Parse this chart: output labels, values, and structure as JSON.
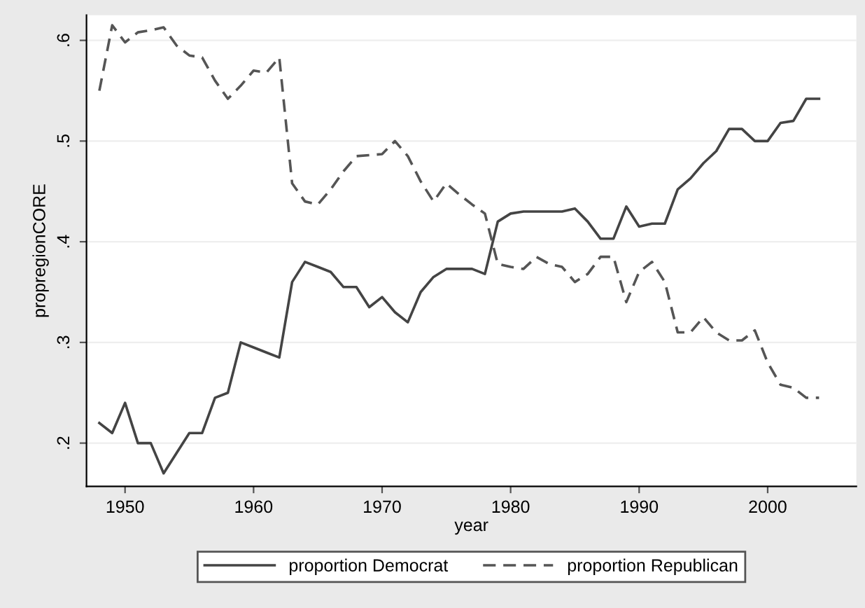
{
  "chart_data": {
    "type": "line",
    "xlabel": "year",
    "ylabel": "propregionCORE",
    "x": [
      1948,
      1949,
      1950,
      1951,
      1952,
      1953,
      1954,
      1955,
      1956,
      1957,
      1958,
      1959,
      1960,
      1961,
      1962,
      1963,
      1964,
      1965,
      1966,
      1967,
      1968,
      1969,
      1970,
      1971,
      1972,
      1973,
      1974,
      1975,
      1976,
      1977,
      1978,
      1979,
      1980,
      1981,
      1982,
      1983,
      1984,
      1985,
      1986,
      1987,
      1988,
      1989,
      1990,
      1991,
      1992,
      1993,
      1994,
      1995,
      1996,
      1997,
      1998,
      1999,
      2000,
      2001,
      2002,
      2003,
      2004
    ],
    "series": [
      {
        "name": "proportion Democrat",
        "color": "#444444",
        "line_style": "solid",
        "values": [
          0.22,
          0.21,
          0.24,
          0.2,
          0.2,
          0.17,
          0.19,
          0.21,
          0.21,
          0.245,
          0.25,
          0.3,
          0.295,
          0.29,
          0.285,
          0.36,
          0.38,
          0.375,
          0.37,
          0.355,
          0.355,
          0.335,
          0.345,
          0.33,
          0.32,
          0.35,
          0.365,
          0.373,
          0.373,
          0.373,
          0.368,
          0.42,
          0.428,
          0.43,
          0.43,
          0.43,
          0.43,
          0.433,
          0.42,
          0.403,
          0.403,
          0.435,
          0.415,
          0.418,
          0.418,
          0.452,
          0.463,
          0.478,
          0.49,
          0.512,
          0.512,
          0.5,
          0.5,
          0.518,
          0.52,
          0.542,
          0.542
        ]
      },
      {
        "name": "proportion Republican",
        "color": "#555555",
        "line_style": "dashed",
        "values": [
          0.55,
          0.615,
          0.598,
          0.608,
          0.61,
          0.613,
          0.595,
          0.585,
          0.583,
          0.56,
          0.542,
          0.555,
          0.57,
          0.568,
          0.583,
          0.458,
          0.44,
          0.437,
          0.452,
          0.47,
          0.485,
          0.486,
          0.487,
          0.5,
          0.485,
          0.46,
          0.44,
          0.458,
          0.447,
          0.437,
          0.428,
          0.378,
          0.375,
          0.373,
          0.385,
          0.378,
          0.375,
          0.36,
          0.368,
          0.385,
          0.385,
          0.34,
          0.37,
          0.38,
          0.36,
          0.31,
          0.31,
          0.325,
          0.31,
          0.302,
          0.302,
          0.312,
          0.28,
          0.258,
          0.255,
          0.245,
          0.245
        ]
      }
    ],
    "xlim": [
      1947,
      2006.9
    ],
    "xticks": [
      1950,
      1960,
      1970,
      1980,
      1990,
      2000
    ],
    "ylim": [
      0.157,
      0.625
    ],
    "yticks": [
      {
        "value": 0.2,
        "label": ".2"
      },
      {
        "value": 0.3,
        "label": ".3"
      },
      {
        "value": 0.4,
        "label": ".4"
      },
      {
        "value": 0.5,
        "label": ".5"
      },
      {
        "value": 0.6,
        "label": ".6"
      }
    ],
    "grid": "y",
    "legend": "bottom",
    "marker": "none"
  }
}
